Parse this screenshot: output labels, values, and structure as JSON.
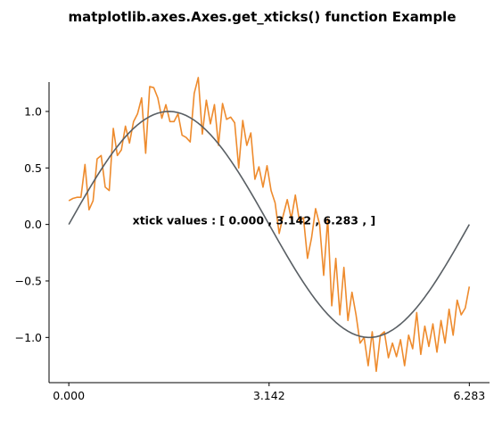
{
  "chart_data": {
    "type": "line",
    "title": "matplotlib.axes.Axes.get_xticks() function Example",
    "xlabel": "",
    "ylabel": "",
    "xlim": [
      -0.31,
      6.6
    ],
    "ylim": [
      -1.4,
      1.26
    ],
    "xticks": [
      0,
      3.142,
      6.283
    ],
    "xtick_labels": [
      "0.000",
      "3.142",
      "6.283"
    ],
    "yticks": [
      1.0,
      0.5,
      0.0,
      -0.5,
      -1.0
    ],
    "ytick_labels": [
      "1.0",
      "0.5",
      "0.0",
      "−0.5",
      "−1.0"
    ],
    "grid": false,
    "annotation": {
      "text": "xtick values : [ 0.000 , 3.142 , 6.283 , ]",
      "x": 1.0,
      "y": 0.0
    },
    "series": [
      {
        "color": "#595f64",
        "function": "sin",
        "x_range": [
          0,
          6.283
        ],
        "n_points": 100
      },
      {
        "color": "#ee8b2d",
        "x_range": [
          0,
          6.283
        ],
        "values": [
          0.21,
          0.23,
          0.24,
          0.24,
          0.53,
          0.13,
          0.21,
          0.58,
          0.61,
          0.33,
          0.3,
          0.85,
          0.61,
          0.66,
          0.87,
          0.72,
          0.91,
          0.98,
          1.12,
          0.63,
          1.22,
          1.21,
          1.12,
          0.94,
          1.06,
          0.91,
          0.91,
          0.98,
          0.79,
          0.77,
          0.73,
          1.16,
          1.3,
          0.8,
          1.1,
          0.89,
          1.06,
          0.7,
          1.07,
          0.93,
          0.95,
          0.9,
          0.5,
          0.92,
          0.7,
          0.81,
          0.4,
          0.51,
          0.33,
          0.52,
          0.3,
          0.19,
          -0.08,
          0.08,
          0.22,
          0.05,
          0.26,
          0.03,
          0.06,
          -0.3,
          -0.12,
          0.14,
          0.0,
          -0.45,
          0.05,
          -0.72,
          -0.3,
          -0.8,
          -0.38,
          -0.85,
          -0.6,
          -0.8,
          -1.05,
          -1.0,
          -1.25,
          -0.95,
          -1.3,
          -0.98,
          -0.95,
          -1.18,
          -1.05,
          -1.17,
          -1.02,
          -1.25,
          -0.98,
          -1.1,
          -0.78,
          -1.15,
          -0.9,
          -1.08,
          -0.88,
          -1.13,
          -0.85,
          -1.05,
          -0.75,
          -0.98,
          -0.67,
          -0.8,
          -0.74,
          -0.55
        ]
      }
    ]
  }
}
